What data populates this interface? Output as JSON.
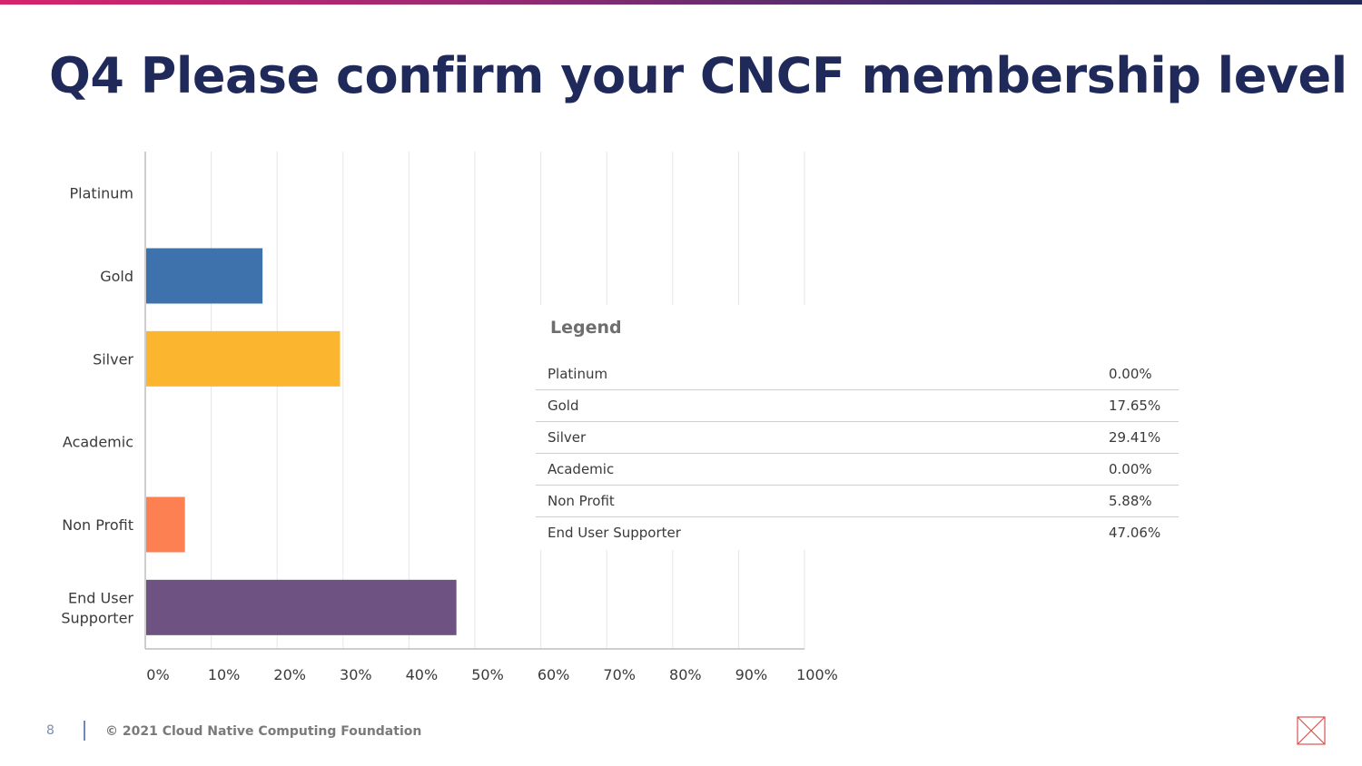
{
  "title": "Q4 Please confirm your CNCF membership level",
  "chart_data": {
    "type": "bar",
    "orientation": "horizontal",
    "categories": [
      "Platinum",
      "Gold",
      "Silver",
      "Academic",
      "Non Profit",
      "End User Supporter"
    ],
    "category_lines": [
      [
        "Platinum"
      ],
      [
        "Gold"
      ],
      [
        "Silver"
      ],
      [
        "Academic"
      ],
      [
        "Non Profit"
      ],
      [
        "End User",
        "Supporter"
      ]
    ],
    "values": [
      0.0,
      17.65,
      29.41,
      0.0,
      5.88,
      47.06
    ],
    "colors": [
      "#6e5a8c",
      "#3e72ad",
      "#fbb52e",
      "#a6a6a6",
      "#fc8051",
      "#6e5282"
    ],
    "xlim": [
      0,
      100
    ],
    "xticks": [
      "0%",
      "10%",
      "20%",
      "30%",
      "40%",
      "50%",
      "60%",
      "70%",
      "80%",
      "90%",
      "100%"
    ],
    "grid": true,
    "legend_placement": "right"
  },
  "legend": {
    "title": "Legend",
    "rows": [
      {
        "name": "Platinum",
        "value": "0.00%"
      },
      {
        "name": "Gold",
        "value": "17.65%"
      },
      {
        "name": "Silver",
        "value": "29.41%"
      },
      {
        "name": "Academic",
        "value": "0.00%"
      },
      {
        "name": "Non Profit",
        "value": "5.88%"
      },
      {
        "name": "End User Supporter",
        "value": "47.06%"
      }
    ]
  },
  "footer": {
    "page_number": "8",
    "copyright": "© 2021 Cloud Native Computing Foundation"
  },
  "colors": {
    "title": "#1f2a5a",
    "axis": "#bdbdbd",
    "grid": "#e6e6e6"
  },
  "icons": {
    "logo": "cncf-logo-icon"
  }
}
